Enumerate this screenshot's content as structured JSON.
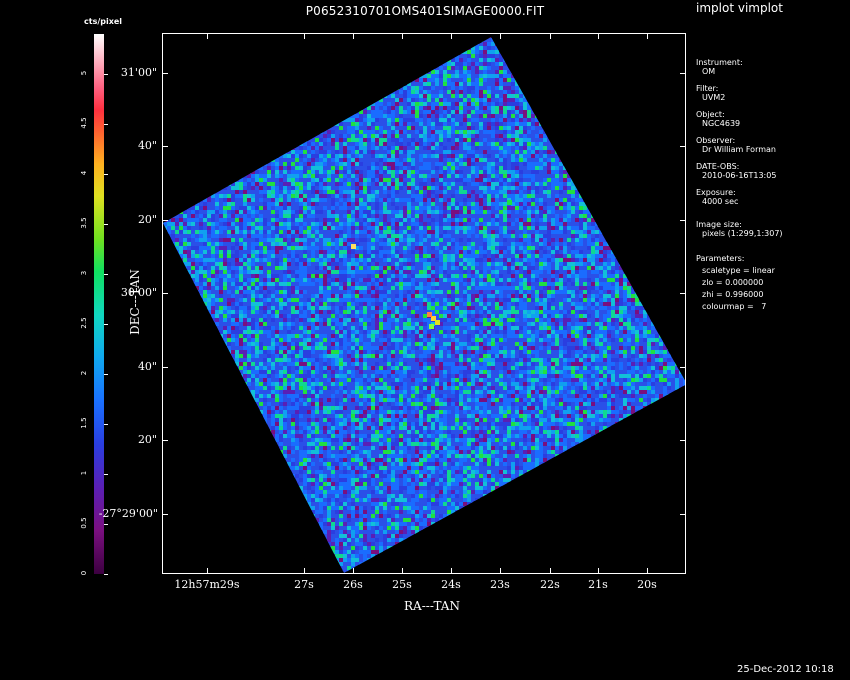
{
  "title": "P0652310701OMS401SIMAGE0000.FIT",
  "app_title": "implot vimplot",
  "colorbar": {
    "label": "cts/pixel",
    "ticks": [
      "0",
      "0.5",
      "1",
      "1.5",
      "2",
      "2.5",
      "3",
      "3.5",
      "4",
      "4.5",
      "5"
    ],
    "range": [
      0,
      5.4
    ]
  },
  "axes": {
    "ylabel": "DEC---TAN",
    "xlabel": "RA---TAN",
    "y_ticks": [
      "31'00\"",
      "40\"",
      "20\"",
      "30'00\"",
      "40\"",
      "20\"",
      "-27°29'00\""
    ],
    "x_ticks": [
      "12h57m29s",
      "27s",
      "26s",
      "25s",
      "24s",
      "23s",
      "22s",
      "21s",
      "20s"
    ]
  },
  "info": {
    "instrument_label": "Instrument:",
    "instrument": "OM",
    "filter_label": "Filter:",
    "filter": "UVM2",
    "object_label": "Object:",
    "object": "NGC4639",
    "observer_label": "Observer:",
    "observer": "Dr William Forman",
    "date_label": "DATE-OBS:",
    "date": "2010-06-16T13:05",
    "exposure_label": "Exposure:",
    "exposure": "4000 sec",
    "size_label": "Image size:",
    "size": "pixels (1:299,1:307)",
    "params_label": "Parameters:",
    "scaletype": "scaletype = linear",
    "zlo": "zlo = 0.000000",
    "zhi": "zhi = 0.996000",
    "colourmap": "colourmap =   7"
  },
  "timestamp": "25-Dec-2012 10:18"
}
